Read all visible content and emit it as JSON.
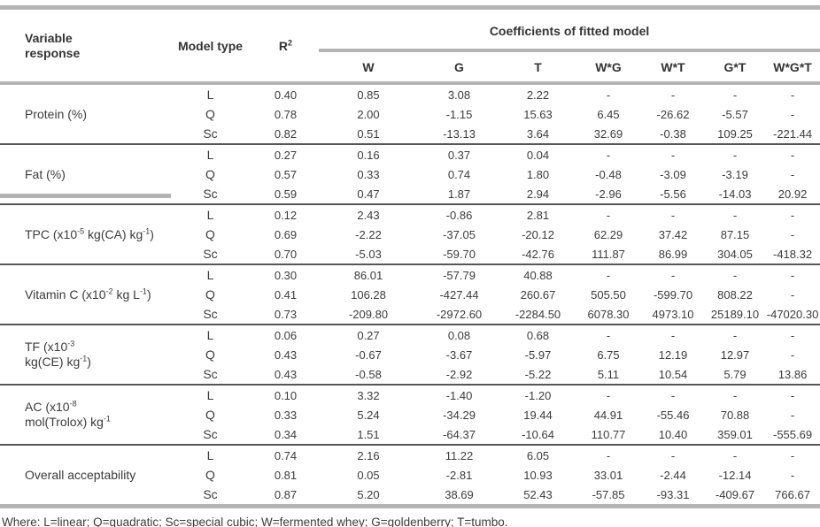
{
  "header": {
    "variable_response": "Variable response",
    "model_type": "Model type",
    "r2_base": "R",
    "r2_sup": "2",
    "coefficients_group": "Coefficients of fitted model",
    "coef_columns": [
      "W",
      "G",
      "T",
      "W*G",
      "W*T",
      "G*T",
      "W*G*T"
    ]
  },
  "groups": [
    {
      "label_parts": [
        {
          "text": "Protein (%)"
        }
      ],
      "rows": [
        {
          "model": "L",
          "r2": "0.40",
          "coefs": [
            "0.85",
            "3.08",
            "2.22",
            "-",
            "-",
            "-",
            "-"
          ]
        },
        {
          "model": "Q",
          "r2": "0.78",
          "coefs": [
            "2.00",
            "-1.15",
            "15.63",
            "6.45",
            "-26.62",
            "-5.57",
            "-"
          ]
        },
        {
          "model": "Sc",
          "r2": "0.82",
          "coefs": [
            "0.51",
            "-13.13",
            "3.64",
            "32.69",
            "-0.38",
            "109.25",
            "-221.44"
          ]
        }
      ]
    },
    {
      "label_parts": [
        {
          "text": "Fat (%)"
        }
      ],
      "rows": [
        {
          "model": "L",
          "r2": "0.27",
          "coefs": [
            "0.16",
            "0.37",
            "0.04",
            "-",
            "-",
            "-",
            "-"
          ]
        },
        {
          "model": "Q",
          "r2": "0.57",
          "coefs": [
            "0.33",
            "0.74",
            "1.80",
            "-0.48",
            "-3.09",
            "-3.19",
            "-"
          ]
        },
        {
          "model": "Sc",
          "r2": "0.59",
          "coefs": [
            "0.47",
            "1.87",
            "2.94",
            "-2.96",
            "-5.56",
            "-14.03",
            "20.92"
          ]
        }
      ]
    },
    {
      "label_parts": [
        {
          "text": "TPC (x10"
        },
        {
          "text": "-5",
          "sup": true
        },
        {
          "text": " kg(CA) kg"
        },
        {
          "text": "-1",
          "sup": true
        },
        {
          "text": ")"
        }
      ],
      "rows": [
        {
          "model": "L",
          "r2": "0.12",
          "coefs": [
            "2.43",
            "-0.86",
            "2.81",
            "-",
            "-",
            "-",
            "-"
          ]
        },
        {
          "model": "Q",
          "r2": "0.69",
          "coefs": [
            "-2.22",
            "-37.05",
            "-20.12",
            "62.29",
            "37.42",
            "87.15",
            "-"
          ]
        },
        {
          "model": "Sc",
          "r2": "0.70",
          "coefs": [
            "-5.03",
            "-59.70",
            "-42.76",
            "111.87",
            "86.99",
            "304.05",
            "-418.32"
          ]
        }
      ]
    },
    {
      "label_parts": [
        {
          "text": "Vitamin C (x10"
        },
        {
          "text": "-2",
          "sup": true
        },
        {
          "text": " kg L"
        },
        {
          "text": "-1",
          "sup": true
        },
        {
          "text": ")"
        }
      ],
      "rows": [
        {
          "model": "L",
          "r2": "0.30",
          "coefs": [
            "86.01",
            "-57.79",
            "40.88",
            "-",
            "-",
            "-",
            "-"
          ]
        },
        {
          "model": "Q",
          "r2": "0.41",
          "coefs": [
            "106.28",
            "-427.44",
            "260.67",
            "505.50",
            "-599.70",
            "808.22",
            "-"
          ]
        },
        {
          "model": "Sc",
          "r2": "0.73",
          "coefs": [
            "-209.80",
            "-2972.60",
            "-2284.50",
            "6078.30",
            "4973.10",
            "25189.10",
            "-47020.30"
          ]
        }
      ]
    },
    {
      "label_parts": [
        {
          "text": "TF (x10"
        },
        {
          "text": "-3",
          "sup": true
        },
        {
          "br": true,
          "text": "kg(CE) kg"
        },
        {
          "text": "-1",
          "sup": true
        },
        {
          "text": ")"
        }
      ],
      "rows": [
        {
          "model": "L",
          "r2": "0.06",
          "coefs": [
            "0.27",
            "0.08",
            "0.68",
            "-",
            "-",
            "-",
            "-"
          ]
        },
        {
          "model": "Q",
          "r2": "0.43",
          "coefs": [
            "-0.67",
            "-3.67",
            "-5.97",
            "6.75",
            "12.19",
            "12.97",
            "-"
          ]
        },
        {
          "model": "Sc",
          "r2": "0.43",
          "coefs": [
            "-0.58",
            "-2.92",
            "-5.22",
            "5.11",
            "10.54",
            "5.79",
            "13.86"
          ]
        }
      ]
    },
    {
      "label_parts": [
        {
          "text": "AC (x10"
        },
        {
          "text": "-8",
          "sup": true
        },
        {
          "br": true,
          "text": "mol(Trolox) kg"
        },
        {
          "text": "-1",
          "sup": true
        }
      ],
      "rows": [
        {
          "model": "L",
          "r2": "0.10",
          "coefs": [
            "3.32",
            "-1.40",
            "-1.20",
            "-",
            "-",
            "-",
            "-"
          ]
        },
        {
          "model": "Q",
          "r2": "0.33",
          "coefs": [
            "5.24",
            "-34.29",
            "19.44",
            "44.91",
            "-55.46",
            "70.88",
            "-"
          ]
        },
        {
          "model": "Sc",
          "r2": "0.34",
          "coefs": [
            "1.51",
            "-64.37",
            "-10.64",
            "110.77",
            "10.40",
            "359.01",
            "-555.69"
          ]
        }
      ]
    },
    {
      "label_parts": [
        {
          "text": "Overall acceptability"
        }
      ],
      "rows": [
        {
          "model": "L",
          "r2": "0.74",
          "coefs": [
            "2.16",
            "11.22",
            "6.05",
            "-",
            "-",
            "-",
            "-"
          ]
        },
        {
          "model": "Q",
          "r2": "0.81",
          "coefs": [
            "0.05",
            "-2.81",
            "10.93",
            "33.01",
            "-2.44",
            "-12.14",
            "-"
          ]
        },
        {
          "model": "Sc",
          "r2": "0.87",
          "coefs": [
            "5.20",
            "38.69",
            "52.43",
            "-57.85",
            "-93.31",
            "-409.67",
            "766.67"
          ]
        }
      ]
    }
  ],
  "footnote": "Where: L=linear; Q=quadratic; Sc=special cubic; W=fermented whey; G=goldenberry; T=tumbo."
}
